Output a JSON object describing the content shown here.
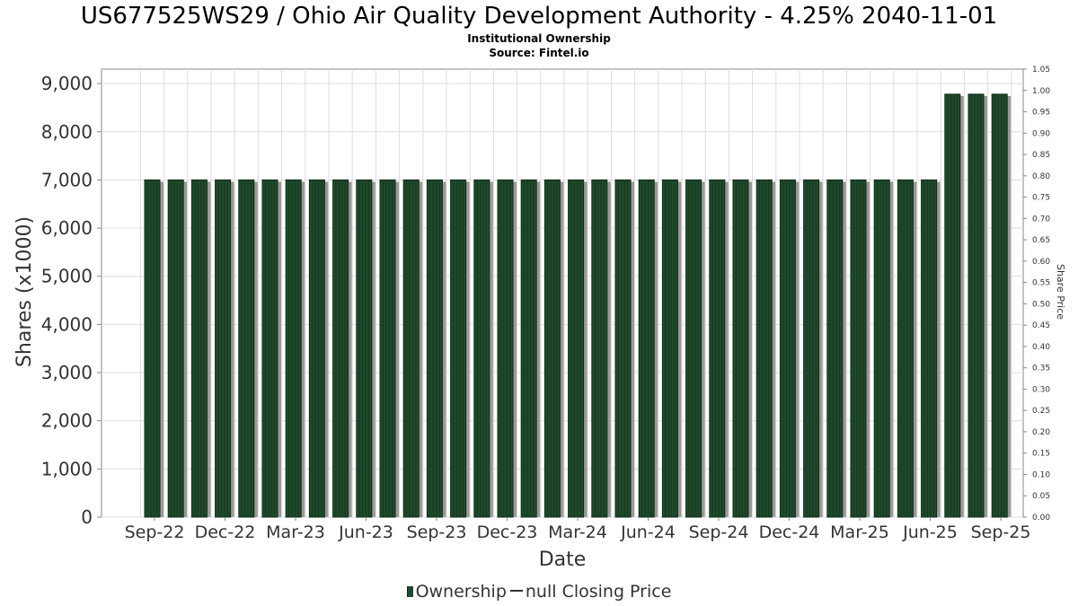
{
  "title": "US677525WS29 / Ohio Air Quality Development Authority - 4.25% 2040-11-01",
  "subtitle": "Institutional Ownership",
  "source": "Source: Fintel.io",
  "legend": {
    "ownership": "Ownership",
    "price": "null Closing Price"
  },
  "colors": {
    "bar": "#1f4a2c",
    "bar_shadow": "#9a9a9a",
    "grid": "#dddddd",
    "axis": "#888888"
  },
  "chart_data": {
    "type": "bar",
    "title": "US677525WS29 / Ohio Air Quality Development Authority - 4.25% 2040-11-01",
    "xlabel": "Date",
    "ylabel": "Shares (x1000)",
    "y2label": "Share Price",
    "ylim": [
      0,
      9300
    ],
    "y2lim": [
      0,
      1.05
    ],
    "yticks": [
      0,
      1000,
      2000,
      3000,
      4000,
      5000,
      6000,
      7000,
      8000,
      9000
    ],
    "ytick_labels": [
      "0",
      "1,000",
      "2,000",
      "3,000",
      "4,000",
      "5,000",
      "6,000",
      "7,000",
      "8,000",
      "9,000"
    ],
    "y2ticks": [
      "0.00",
      "0.05",
      "0.10",
      "0.15",
      "0.20",
      "0.25",
      "0.30",
      "0.35",
      "0.40",
      "0.45",
      "0.50",
      "0.55",
      "0.60",
      "0.65",
      "0.70",
      "0.75",
      "0.80",
      "0.85",
      "0.90",
      "0.95",
      "1.00",
      "1.05"
    ],
    "xtick_labels": [
      "Sep-22",
      "Dec-22",
      "Mar-23",
      "Jun-23",
      "Sep-23",
      "Dec-23",
      "Mar-24",
      "Jun-24",
      "Sep-24",
      "Dec-24",
      "Mar-25",
      "Jun-25",
      "Sep-25"
    ],
    "values": [
      7000,
      7000,
      7000,
      7000,
      7000,
      7000,
      7000,
      7000,
      7000,
      7000,
      7000,
      7000,
      7000,
      7000,
      7000,
      7000,
      7000,
      7000,
      7000,
      7000,
      7000,
      7000,
      7000,
      7000,
      7000,
      7000,
      7000,
      7000,
      7000,
      7000,
      7000,
      7000,
      7000,
      7000,
      8780,
      8780,
      8780
    ],
    "grid": true,
    "legend_position": "bottom-center"
  }
}
